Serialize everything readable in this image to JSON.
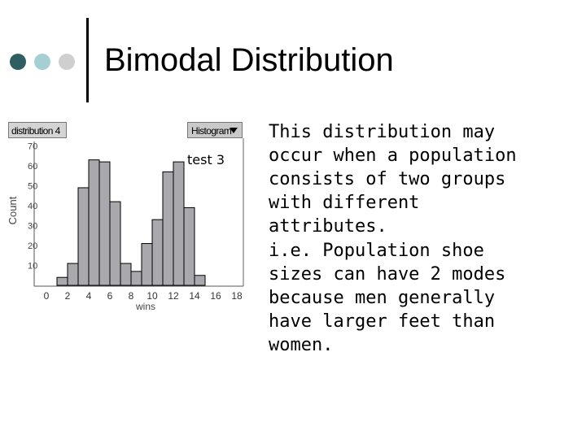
{
  "slide": {
    "title": "Bimodal Distribution",
    "bullet_colors": [
      "#2f5f63",
      "#a6cfd3",
      "#cfcfcf"
    ],
    "paragraphs": [
      "This distribution may occur when a population consists of two groups with different attributes.",
      "i.e. Population shoe sizes can have 2 modes because men generally have larger feet than women."
    ]
  },
  "widget": {
    "distribution_label": "distribution 4",
    "histogram_label": "Histogram"
  },
  "chart_data": {
    "type": "bar",
    "title": "test 3",
    "xlabel": "wins",
    "ylabel": "Count",
    "x_ticks": [
      "0",
      "2",
      "4",
      "6",
      "8",
      "10",
      "12",
      "14",
      "16",
      "18"
    ],
    "y_ticks": [
      "10",
      "20",
      "30",
      "40",
      "50",
      "60",
      "70"
    ],
    "bin_width": 1,
    "bin_starts": [
      1,
      2,
      3,
      4,
      5,
      6,
      7,
      8,
      9,
      10,
      11,
      12,
      13,
      14
    ],
    "values": [
      4,
      11,
      49,
      63,
      62,
      42,
      11,
      7,
      21,
      33,
      57,
      62,
      39,
      5
    ],
    "xlim": [
      -1,
      19
    ],
    "ylim": [
      0,
      75
    ],
    "bar_color": "#a9a9ad"
  }
}
